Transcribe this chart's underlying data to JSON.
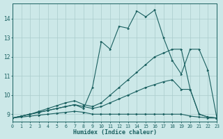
{
  "xlabel": "Humidex (Indice chaleur)",
  "bg_color": "#cce8e8",
  "grid_color": "#aacccc",
  "line_color": "#1a6060",
  "xlim": [
    0,
    23
  ],
  "ylim": [
    8.6,
    14.8
  ],
  "xticks": [
    0,
    1,
    2,
    3,
    4,
    5,
    6,
    7,
    8,
    9,
    10,
    11,
    12,
    13,
    14,
    15,
    16,
    17,
    18,
    19,
    20,
    21,
    22,
    23
  ],
  "yticks": [
    9,
    10,
    11,
    12,
    13,
    14
  ],
  "line1_x": [
    0,
    1,
    2,
    3,
    4,
    5,
    6,
    7,
    8,
    9,
    10,
    11,
    12,
    13,
    14,
    15,
    16,
    17,
    18,
    19,
    20,
    21,
    22,
    23
  ],
  "line1_y": [
    8.8,
    8.85,
    8.9,
    8.95,
    9.0,
    9.05,
    9.1,
    9.15,
    9.1,
    9.0,
    9.0,
    9.0,
    9.0,
    9.0,
    9.0,
    9.0,
    9.0,
    9.0,
    9.0,
    9.0,
    8.9,
    8.85,
    8.8,
    8.8
  ],
  "line2_x": [
    0,
    1,
    2,
    3,
    4,
    5,
    6,
    7,
    8,
    9,
    10,
    11,
    12,
    13,
    14,
    15,
    16,
    17,
    18,
    19,
    20,
    21,
    22,
    23
  ],
  "line2_y": [
    8.8,
    8.9,
    9.0,
    9.1,
    9.2,
    9.3,
    9.4,
    9.5,
    9.4,
    9.3,
    9.4,
    9.6,
    9.8,
    10.0,
    10.2,
    10.4,
    10.55,
    10.7,
    10.8,
    10.3,
    10.3,
    9.0,
    8.85,
    8.8
  ],
  "line3_x": [
    0,
    1,
    2,
    3,
    4,
    5,
    6,
    7,
    8,
    9,
    10,
    11,
    12,
    13,
    14,
    15,
    16,
    17,
    18,
    19,
    20,
    21,
    22,
    23
  ],
  "line3_y": [
    8.8,
    8.9,
    9.0,
    9.15,
    9.3,
    9.45,
    9.6,
    9.7,
    9.5,
    9.4,
    9.6,
    10.0,
    10.4,
    10.8,
    11.2,
    11.6,
    12.0,
    12.2,
    12.4,
    12.4,
    10.3,
    9.0,
    8.85,
    8.8
  ],
  "line4_x": [
    0,
    1,
    2,
    3,
    4,
    5,
    6,
    7,
    8,
    9,
    10,
    11,
    12,
    13,
    14,
    15,
    16,
    17,
    18,
    19,
    20,
    21,
    22,
    23
  ],
  "line4_y": [
    8.8,
    8.9,
    9.0,
    9.1,
    9.2,
    9.3,
    9.4,
    9.5,
    9.3,
    10.4,
    12.8,
    12.4,
    13.6,
    13.5,
    14.4,
    14.1,
    14.45,
    13.0,
    11.8,
    11.1,
    12.4,
    12.4,
    11.3,
    8.8
  ]
}
